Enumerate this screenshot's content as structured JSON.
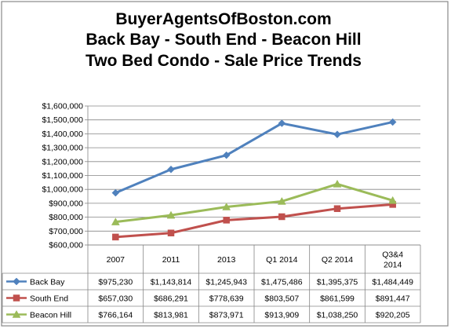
{
  "chart_data": {
    "type": "line",
    "title_lines": [
      "BuyerAgentsOfBoston.com",
      "Back Bay - South End - Beacon Hill",
      "Two Bed Condo - Sale Price Trends"
    ],
    "categories": [
      [
        "2007"
      ],
      [
        "2011"
      ],
      [
        "2013"
      ],
      [
        "Q1 2014"
      ],
      [
        "Q2 2014"
      ],
      [
        "Q3&4",
        "2014"
      ]
    ],
    "ylim": [
      600000,
      1600000
    ],
    "ytick_step": 100000,
    "ytick_labels": [
      "$600,000",
      "$700,000",
      "$800,000",
      "$900,000",
      "$1,000,000",
      "$1,100,000",
      "$1,200,000",
      "$1,300,000",
      "$1,400,000",
      "$1,500,000",
      "$1,600,000"
    ],
    "grid": true,
    "legend": "data-table",
    "series": [
      {
        "name": "Back  Bay",
        "color": "#4f81bd",
        "marker": "diamond",
        "values": [
          975230,
          1143814,
          1245943,
          1475486,
          1395375,
          1484449
        ],
        "labels": [
          "$975,230",
          "$1,143,814",
          "$1,245,943",
          "$1,475,486",
          "$1,395,375",
          "$1,484,449"
        ]
      },
      {
        "name": "South End",
        "color": "#c0504d",
        "marker": "square",
        "values": [
          657030,
          686291,
          778639,
          803507,
          861599,
          891447
        ],
        "labels": [
          "$657,030",
          "$686,291",
          "$778,639",
          "$803,507",
          "$861,599",
          "$891,447"
        ]
      },
      {
        "name": "Beacon Hill",
        "color": "#9bbb59",
        "marker": "triangle",
        "values": [
          766164,
          813981,
          873971,
          913909,
          1038250,
          920205
        ],
        "labels": [
          "$766,164",
          "$813,981",
          "$873,971",
          "$913,909",
          "$1,038,250",
          "$920,205"
        ]
      }
    ]
  }
}
